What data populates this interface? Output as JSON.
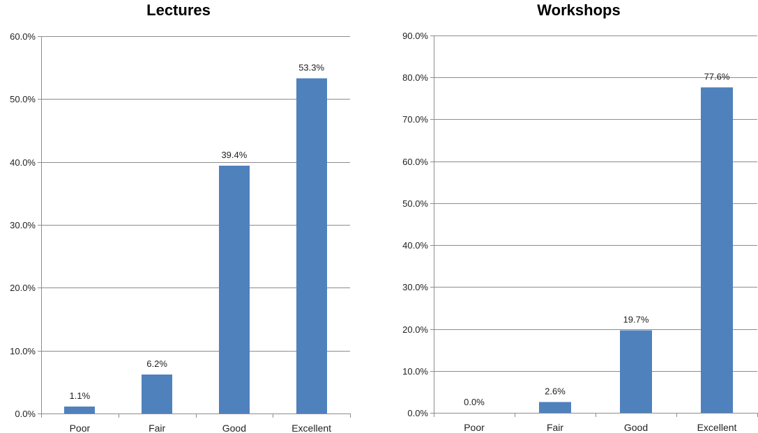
{
  "chart_data": [
    {
      "type": "bar",
      "title": "Lectures",
      "categories": [
        "Poor",
        "Fair",
        "Good",
        "Excellent"
      ],
      "values": [
        1.1,
        6.2,
        39.4,
        53.3
      ],
      "value_labels": [
        "1.1%",
        "6.2%",
        "39.4%",
        "53.3%"
      ],
      "ylim": [
        0,
        60
      ],
      "yticks": [
        0,
        10,
        20,
        30,
        40,
        50,
        60
      ],
      "ytick_labels": [
        "0.0%",
        "10.0%",
        "20.0%",
        "30.0%",
        "40.0%",
        "50.0%",
        "60.0%"
      ],
      "xlabel": "",
      "ylabel": "",
      "grid": true,
      "legend": "none",
      "bar_color": "#4f81bd"
    },
    {
      "type": "bar",
      "title": "Workshops",
      "categories": [
        "Poor",
        "Fair",
        "Good",
        "Excellent"
      ],
      "values": [
        0.0,
        2.6,
        19.7,
        77.6
      ],
      "value_labels": [
        "0.0%",
        "2.6%",
        "19.7%",
        "77.6%"
      ],
      "ylim": [
        0,
        90
      ],
      "yticks": [
        0,
        10,
        20,
        30,
        40,
        50,
        60,
        70,
        80,
        90
      ],
      "ytick_labels": [
        "0.0%",
        "10.0%",
        "20.0%",
        "30.0%",
        "40.0%",
        "50.0%",
        "60.0%",
        "70.0%",
        "80.0%",
        "90.0%"
      ],
      "xlabel": "",
      "ylabel": "",
      "grid": true,
      "legend": "none",
      "bar_color": "#4f81bd"
    }
  ],
  "colors": {
    "gridline": "#8c8c8c",
    "text": "#222222"
  }
}
